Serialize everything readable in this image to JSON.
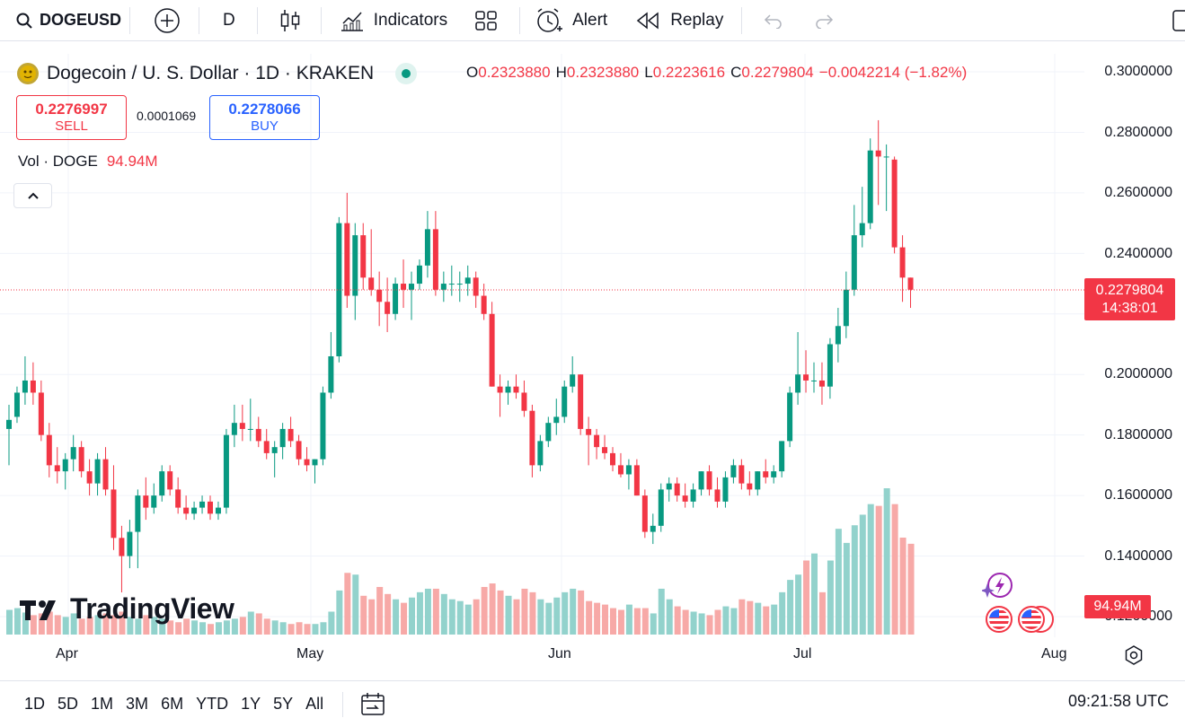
{
  "toolbar": {
    "symbol": "DOGEUSD",
    "interval": "D",
    "indicators_label": "Indicators",
    "alert_label": "Alert",
    "replay_label": "Replay"
  },
  "legend": {
    "title": "Dogecoin / U. S. Dollar · 1D · KRAKEN",
    "o_key": "O",
    "o_val": "0.2323880",
    "h_key": "H",
    "h_val": "0.2323880",
    "l_key": "L",
    "l_val": "0.2223616",
    "c_key": "C",
    "c_val": "0.2279804",
    "change": "−0.0042214 (−1.82%)"
  },
  "trade": {
    "sell_price": "0.2276997",
    "sell_label": "SELL",
    "spread": "0.0001069",
    "buy_price": "0.2278066",
    "buy_label": "BUY"
  },
  "volume_legend": {
    "label": "Vol · DOGE",
    "value": "94.94M"
  },
  "price_axis": [
    "0.3000000",
    "0.2800000",
    "0.2600000",
    "0.2400000",
    "0.2000000",
    "0.1800000",
    "0.1600000",
    "0.1400000",
    "0.1200000"
  ],
  "time_axis": [
    "Apr",
    "May",
    "Jun",
    "Jul",
    "Aug"
  ],
  "last_price": {
    "price": "0.2279804",
    "countdown": "14:38:01"
  },
  "volume_tag": "94.94M",
  "watermark": "TradingView",
  "ranges": [
    "1D",
    "5D",
    "1M",
    "3M",
    "6M",
    "YTD",
    "1Y",
    "5Y",
    "All"
  ],
  "clock": "09:21:58 UTC",
  "colors": {
    "up": "#089981",
    "down": "#f23645",
    "up_vol": "#92d2cc",
    "down_vol": "#f7a9a7",
    "buy": "#2962ff"
  },
  "chart_data": {
    "type": "candlestick",
    "ylim": [
      0.12,
      0.3
    ],
    "candles": [
      {
        "o": 0.182,
        "h": 0.19,
        "l": 0.17,
        "c": 0.185
      },
      {
        "o": 0.186,
        "h": 0.196,
        "l": 0.184,
        "c": 0.194
      },
      {
        "o": 0.194,
        "h": 0.206,
        "l": 0.19,
        "c": 0.198
      },
      {
        "o": 0.198,
        "h": 0.204,
        "l": 0.19,
        "c": 0.194
      },
      {
        "o": 0.194,
        "h": 0.198,
        "l": 0.178,
        "c": 0.18
      },
      {
        "o": 0.18,
        "h": 0.184,
        "l": 0.166,
        "c": 0.17
      },
      {
        "o": 0.17,
        "h": 0.176,
        "l": 0.164,
        "c": 0.168
      },
      {
        "o": 0.168,
        "h": 0.174,
        "l": 0.162,
        "c": 0.172
      },
      {
        "o": 0.172,
        "h": 0.18,
        "l": 0.168,
        "c": 0.176
      },
      {
        "o": 0.176,
        "h": 0.178,
        "l": 0.166,
        "c": 0.168
      },
      {
        "o": 0.168,
        "h": 0.172,
        "l": 0.16,
        "c": 0.164
      },
      {
        "o": 0.164,
        "h": 0.174,
        "l": 0.16,
        "c": 0.172
      },
      {
        "o": 0.172,
        "h": 0.176,
        "l": 0.16,
        "c": 0.162
      },
      {
        "o": 0.162,
        "h": 0.17,
        "l": 0.142,
        "c": 0.146
      },
      {
        "o": 0.146,
        "h": 0.15,
        "l": 0.128,
        "c": 0.14
      },
      {
        "o": 0.14,
        "h": 0.152,
        "l": 0.136,
        "c": 0.148
      },
      {
        "o": 0.148,
        "h": 0.162,
        "l": 0.136,
        "c": 0.16
      },
      {
        "o": 0.16,
        "h": 0.166,
        "l": 0.152,
        "c": 0.156
      },
      {
        "o": 0.156,
        "h": 0.164,
        "l": 0.154,
        "c": 0.16
      },
      {
        "o": 0.16,
        "h": 0.17,
        "l": 0.158,
        "c": 0.168
      },
      {
        "o": 0.168,
        "h": 0.17,
        "l": 0.16,
        "c": 0.162
      },
      {
        "o": 0.162,
        "h": 0.166,
        "l": 0.154,
        "c": 0.156
      },
      {
        "o": 0.156,
        "h": 0.16,
        "l": 0.152,
        "c": 0.154
      },
      {
        "o": 0.154,
        "h": 0.158,
        "l": 0.152,
        "c": 0.156
      },
      {
        "o": 0.156,
        "h": 0.16,
        "l": 0.154,
        "c": 0.158
      },
      {
        "o": 0.158,
        "h": 0.16,
        "l": 0.152,
        "c": 0.154
      },
      {
        "o": 0.154,
        "h": 0.158,
        "l": 0.152,
        "c": 0.156
      },
      {
        "o": 0.156,
        "h": 0.182,
        "l": 0.154,
        "c": 0.18
      },
      {
        "o": 0.18,
        "h": 0.19,
        "l": 0.176,
        "c": 0.184
      },
      {
        "o": 0.184,
        "h": 0.19,
        "l": 0.178,
        "c": 0.182
      },
      {
        "o": 0.182,
        "h": 0.192,
        "l": 0.178,
        "c": 0.182
      },
      {
        "o": 0.182,
        "h": 0.186,
        "l": 0.176,
        "c": 0.178
      },
      {
        "o": 0.178,
        "h": 0.182,
        "l": 0.172,
        "c": 0.174
      },
      {
        "o": 0.174,
        "h": 0.178,
        "l": 0.166,
        "c": 0.176
      },
      {
        "o": 0.176,
        "h": 0.184,
        "l": 0.172,
        "c": 0.182
      },
      {
        "o": 0.182,
        "h": 0.186,
        "l": 0.176,
        "c": 0.178
      },
      {
        "o": 0.178,
        "h": 0.18,
        "l": 0.17,
        "c": 0.172
      },
      {
        "o": 0.172,
        "h": 0.176,
        "l": 0.168,
        "c": 0.17
      },
      {
        "o": 0.17,
        "h": 0.172,
        "l": 0.164,
        "c": 0.172
      },
      {
        "o": 0.172,
        "h": 0.196,
        "l": 0.17,
        "c": 0.194
      },
      {
        "o": 0.194,
        "h": 0.214,
        "l": 0.192,
        "c": 0.206
      },
      {
        "o": 0.206,
        "h": 0.252,
        "l": 0.204,
        "c": 0.25
      },
      {
        "o": 0.25,
        "h": 0.26,
        "l": 0.222,
        "c": 0.226
      },
      {
        "o": 0.226,
        "h": 0.25,
        "l": 0.218,
        "c": 0.246
      },
      {
        "o": 0.246,
        "h": 0.25,
        "l": 0.228,
        "c": 0.232
      },
      {
        "o": 0.232,
        "h": 0.248,
        "l": 0.226,
        "c": 0.228
      },
      {
        "o": 0.228,
        "h": 0.234,
        "l": 0.216,
        "c": 0.224
      },
      {
        "o": 0.224,
        "h": 0.232,
        "l": 0.214,
        "c": 0.22
      },
      {
        "o": 0.22,
        "h": 0.232,
        "l": 0.218,
        "c": 0.23
      },
      {
        "o": 0.23,
        "h": 0.238,
        "l": 0.222,
        "c": 0.228
      },
      {
        "o": 0.228,
        "h": 0.234,
        "l": 0.218,
        "c": 0.23
      },
      {
        "o": 0.23,
        "h": 0.238,
        "l": 0.228,
        "c": 0.236
      },
      {
        "o": 0.236,
        "h": 0.254,
        "l": 0.232,
        "c": 0.248
      },
      {
        "o": 0.248,
        "h": 0.254,
        "l": 0.226,
        "c": 0.228
      },
      {
        "o": 0.228,
        "h": 0.234,
        "l": 0.224,
        "c": 0.23
      },
      {
        "o": 0.23,
        "h": 0.236,
        "l": 0.226,
        "c": 0.23
      },
      {
        "o": 0.23,
        "h": 0.234,
        "l": 0.224,
        "c": 0.23
      },
      {
        "o": 0.23,
        "h": 0.236,
        "l": 0.226,
        "c": 0.232
      },
      {
        "o": 0.232,
        "h": 0.234,
        "l": 0.222,
        "c": 0.226
      },
      {
        "o": 0.226,
        "h": 0.23,
        "l": 0.218,
        "c": 0.22
      },
      {
        "o": 0.22,
        "h": 0.224,
        "l": 0.196,
        "c": 0.196
      },
      {
        "o": 0.196,
        "h": 0.2,
        "l": 0.186,
        "c": 0.194
      },
      {
        "o": 0.194,
        "h": 0.198,
        "l": 0.19,
        "c": 0.196
      },
      {
        "o": 0.196,
        "h": 0.2,
        "l": 0.192,
        "c": 0.194
      },
      {
        "o": 0.194,
        "h": 0.198,
        "l": 0.186,
        "c": 0.188
      },
      {
        "o": 0.188,
        "h": 0.19,
        "l": 0.166,
        "c": 0.17
      },
      {
        "o": 0.17,
        "h": 0.18,
        "l": 0.168,
        "c": 0.178
      },
      {
        "o": 0.178,
        "h": 0.186,
        "l": 0.176,
        "c": 0.184
      },
      {
        "o": 0.184,
        "h": 0.192,
        "l": 0.18,
        "c": 0.186
      },
      {
        "o": 0.186,
        "h": 0.198,
        "l": 0.184,
        "c": 0.196
      },
      {
        "o": 0.196,
        "h": 0.206,
        "l": 0.194,
        "c": 0.2
      },
      {
        "o": 0.2,
        "h": 0.2,
        "l": 0.18,
        "c": 0.182
      },
      {
        "o": 0.182,
        "h": 0.186,
        "l": 0.17,
        "c": 0.18
      },
      {
        "o": 0.18,
        "h": 0.182,
        "l": 0.172,
        "c": 0.176
      },
      {
        "o": 0.176,
        "h": 0.18,
        "l": 0.172,
        "c": 0.174
      },
      {
        "o": 0.174,
        "h": 0.176,
        "l": 0.168,
        "c": 0.17
      },
      {
        "o": 0.17,
        "h": 0.174,
        "l": 0.166,
        "c": 0.167
      },
      {
        "o": 0.167,
        "h": 0.172,
        "l": 0.162,
        "c": 0.17
      },
      {
        "o": 0.17,
        "h": 0.172,
        "l": 0.16,
        "c": 0.16
      },
      {
        "o": 0.16,
        "h": 0.162,
        "l": 0.146,
        "c": 0.148
      },
      {
        "o": 0.148,
        "h": 0.154,
        "l": 0.144,
        "c": 0.15
      },
      {
        "o": 0.15,
        "h": 0.164,
        "l": 0.148,
        "c": 0.162
      },
      {
        "o": 0.162,
        "h": 0.166,
        "l": 0.158,
        "c": 0.164
      },
      {
        "o": 0.164,
        "h": 0.166,
        "l": 0.158,
        "c": 0.16
      },
      {
        "o": 0.16,
        "h": 0.164,
        "l": 0.156,
        "c": 0.158
      },
      {
        "o": 0.158,
        "h": 0.164,
        "l": 0.156,
        "c": 0.162
      },
      {
        "o": 0.162,
        "h": 0.168,
        "l": 0.16,
        "c": 0.168
      },
      {
        "o": 0.168,
        "h": 0.17,
        "l": 0.16,
        "c": 0.162
      },
      {
        "o": 0.162,
        "h": 0.166,
        "l": 0.156,
        "c": 0.158
      },
      {
        "o": 0.158,
        "h": 0.168,
        "l": 0.156,
        "c": 0.166
      },
      {
        "o": 0.166,
        "h": 0.172,
        "l": 0.164,
        "c": 0.17
      },
      {
        "o": 0.17,
        "h": 0.172,
        "l": 0.162,
        "c": 0.164
      },
      {
        "o": 0.164,
        "h": 0.168,
        "l": 0.16,
        "c": 0.162
      },
      {
        "o": 0.162,
        "h": 0.168,
        "l": 0.16,
        "c": 0.168
      },
      {
        "o": 0.168,
        "h": 0.172,
        "l": 0.164,
        "c": 0.166
      },
      {
        "o": 0.166,
        "h": 0.17,
        "l": 0.164,
        "c": 0.168
      },
      {
        "o": 0.168,
        "h": 0.178,
        "l": 0.166,
        "c": 0.178
      },
      {
        "o": 0.178,
        "h": 0.196,
        "l": 0.176,
        "c": 0.194
      },
      {
        "o": 0.194,
        "h": 0.214,
        "l": 0.19,
        "c": 0.2
      },
      {
        "o": 0.2,
        "h": 0.208,
        "l": 0.194,
        "c": 0.198
      },
      {
        "o": 0.198,
        "h": 0.204,
        "l": 0.194,
        "c": 0.198
      },
      {
        "o": 0.198,
        "h": 0.204,
        "l": 0.19,
        "c": 0.196
      },
      {
        "o": 0.196,
        "h": 0.212,
        "l": 0.192,
        "c": 0.21
      },
      {
        "o": 0.21,
        "h": 0.222,
        "l": 0.204,
        "c": 0.216
      },
      {
        "o": 0.216,
        "h": 0.234,
        "l": 0.212,
        "c": 0.228
      },
      {
        "o": 0.228,
        "h": 0.256,
        "l": 0.226,
        "c": 0.246
      },
      {
        "o": 0.246,
        "h": 0.262,
        "l": 0.242,
        "c": 0.25
      },
      {
        "o": 0.25,
        "h": 0.278,
        "l": 0.248,
        "c": 0.274
      },
      {
        "o": 0.274,
        "h": 0.284,
        "l": 0.256,
        "c": 0.272
      },
      {
        "o": 0.272,
        "h": 0.276,
        "l": 0.254,
        "c": 0.272
      },
      {
        "o": 0.271,
        "h": 0.272,
        "l": 0.24,
        "c": 0.242
      },
      {
        "o": 0.242,
        "h": 0.246,
        "l": 0.224,
        "c": 0.232
      },
      {
        "o": 0.232,
        "h": 0.232,
        "l": 0.222,
        "c": 0.228
      }
    ],
    "volume_m": [
      28,
      30,
      25,
      22,
      24,
      26,
      22,
      20,
      24,
      18,
      20,
      22,
      24,
      22,
      26,
      20,
      18,
      22,
      20,
      18,
      16,
      14,
      18,
      16,
      14,
      12,
      14,
      16,
      18,
      20,
      26,
      24,
      18,
      16,
      14,
      12,
      14,
      12,
      12,
      14,
      26,
      50,
      70,
      68,
      44,
      40,
      54,
      46,
      40,
      36,
      42,
      48,
      52,
      52,
      46,
      40,
      38,
      34,
      40,
      54,
      58,
      50,
      44,
      40,
      52,
      48,
      40,
      36,
      42,
      48,
      52,
      50,
      38,
      36,
      34,
      30,
      28,
      34,
      30,
      30,
      24,
      52,
      40,
      32,
      28,
      26,
      24,
      22,
      28,
      32,
      30,
      40,
      38,
      36,
      32,
      34,
      48,
      62,
      68,
      84,
      92,
      48,
      84,
      120,
      104,
      124,
      136,
      148,
      146,
      166,
      148,
      110,
      103,
      94.94
    ]
  }
}
